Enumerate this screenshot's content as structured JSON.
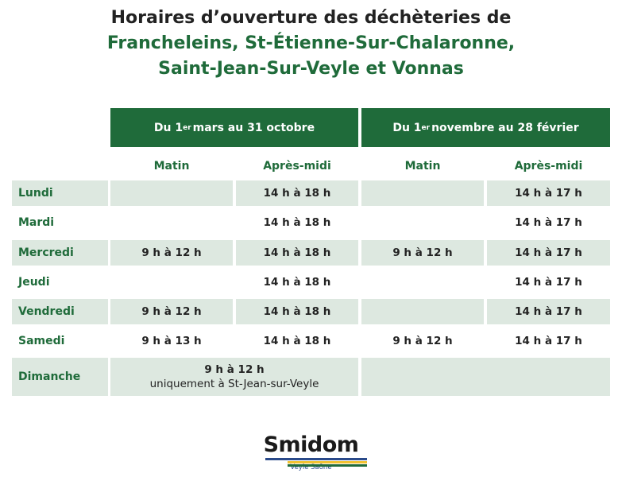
{
  "title": {
    "line1": "Horaires d’ouverture des déchèteries de",
    "line2": "Francheleins, St-Étienne-Sur-Chalaronne,",
    "line3": "Saint-Jean-Sur-Veyle et Vonnas"
  },
  "periods": [
    {
      "pre": "Du 1",
      "sup": "er",
      "post": " mars au 31 octobre"
    },
    {
      "pre": "Du 1",
      "sup": "er",
      "post": " novembre au 28 février"
    }
  ],
  "columns": [
    "Matin",
    "Après-midi",
    "Matin",
    "Après-midi"
  ],
  "rows": [
    {
      "day": "Lundi",
      "cells": [
        "",
        "14 h à 18 h",
        "",
        "14 h à 17 h"
      ]
    },
    {
      "day": "Mardi",
      "cells": [
        "",
        "14 h à 18 h",
        "",
        "14 h à 17 h"
      ]
    },
    {
      "day": "Mercredi",
      "cells": [
        "9 h à 12 h",
        "14 h à 18 h",
        "9 h à 12 h",
        "14 h à 17 h"
      ]
    },
    {
      "day": "Jeudi",
      "cells": [
        "",
        "14 h à 18 h",
        "",
        "14 h à 17 h"
      ]
    },
    {
      "day": "Vendredi",
      "cells": [
        "9 h à 12 h",
        "14 h à 18 h",
        "",
        "14 h à 17 h"
      ]
    },
    {
      "day": "Samedi",
      "cells": [
        "9 h à 13 h",
        "14 h à 18 h",
        "9 h à 12 h",
        "14 h à 17 h"
      ]
    }
  ],
  "sunday": {
    "day": "Dimanche",
    "hours": "9 h à 12 h",
    "note": "uniquement à St-Jean-sur-Veyle"
  },
  "logo": {
    "name": "Smidom",
    "tagline": "Veyle Saône"
  },
  "colors": {
    "green": "#1f6b3a",
    "shade": "#dde8e0"
  }
}
